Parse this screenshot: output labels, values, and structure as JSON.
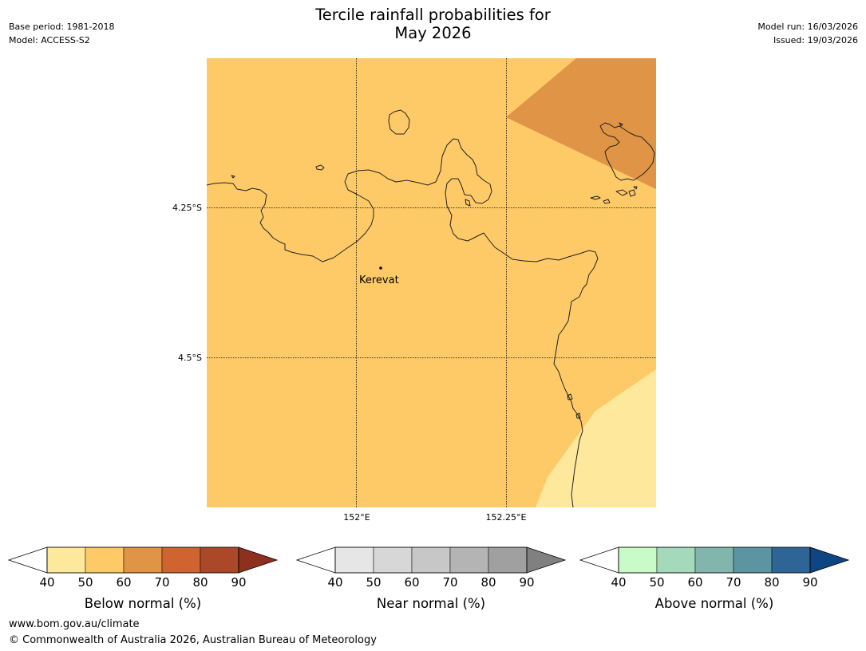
{
  "title_line1": "Tercile rainfall probabilities for",
  "title_line2": "May 2026",
  "base_period": "Base period: 1981-2018",
  "model": "Model: ACCESS-S2",
  "model_run": "Model run: 16/03/2026",
  "issued": "Issued: 19/03/2026",
  "map": {
    "lat_labels": [
      "4.25°S",
      "4.5°S"
    ],
    "lon_labels": [
      "152°E",
      "152.25°E"
    ],
    "place": "Kerevat",
    "colors": {
      "below_40_50": "#fee89c",
      "below_50_60": "#fdca67",
      "below_60_70": "#e09445",
      "coast": "#222222"
    }
  },
  "colorbars": [
    {
      "label": "Below normal (%)",
      "ticks": [
        "40",
        "50",
        "60",
        "70",
        "80",
        "90"
      ],
      "colors": [
        "#ffffff",
        "#fee89c",
        "#fdca67",
        "#e09445",
        "#cf6430",
        "#aa4828",
        "#8e3020"
      ]
    },
    {
      "label": "Near normal (%)",
      "ticks": [
        "40",
        "50",
        "60",
        "70",
        "80",
        "90"
      ],
      "colors": [
        "#ffffff",
        "#e6e6e6",
        "#d7d7d7",
        "#c7c7c7",
        "#b4b4b4",
        "#a0a0a0",
        "#808080"
      ]
    },
    {
      "label": "Above normal (%)",
      "ticks": [
        "40",
        "50",
        "60",
        "70",
        "80",
        "90"
      ],
      "colors": [
        "#ffffff",
        "#c8fbc8",
        "#a5d9bb",
        "#82b6ad",
        "#5d94a1",
        "#2f6496",
        "#0d4682"
      ]
    }
  ],
  "footer_line1": "www.bom.gov.au/climate",
  "footer_line2": "© Commonwealth of Australia 2026, Australian Bureau of Meteorology"
}
